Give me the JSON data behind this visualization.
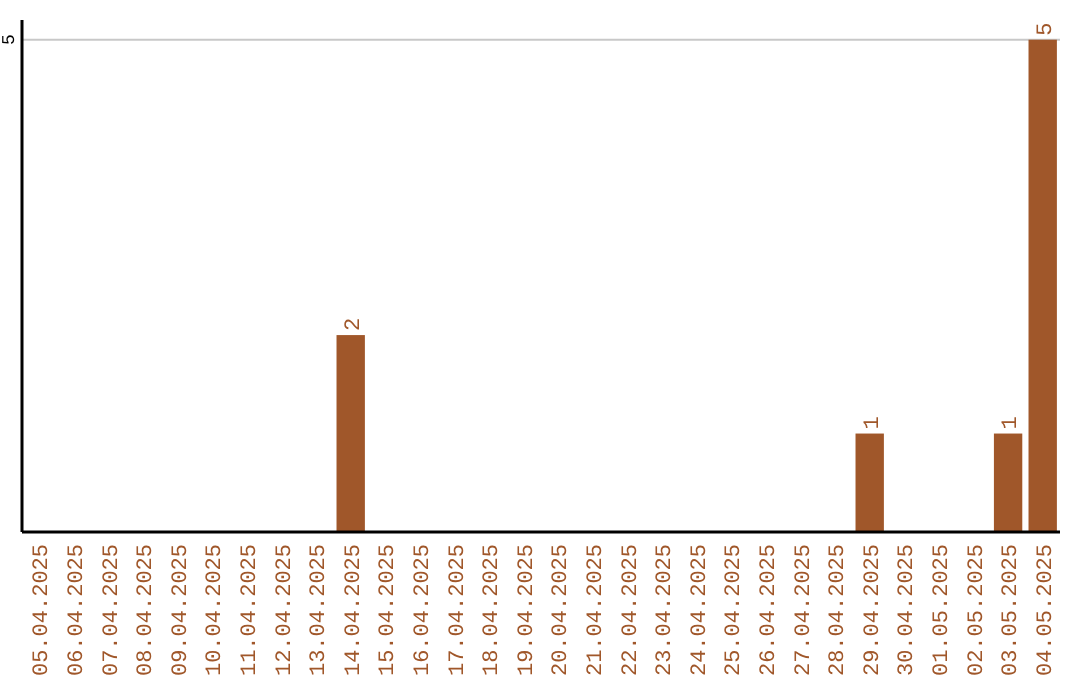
{
  "chart_data": {
    "type": "bar",
    "categories": [
      "05.04.2025",
      "06.04.2025",
      "07.04.2025",
      "08.04.2025",
      "09.04.2025",
      "10.04.2025",
      "11.04.2025",
      "12.04.2025",
      "13.04.2025",
      "14.04.2025",
      "15.04.2025",
      "16.04.2025",
      "17.04.2025",
      "18.04.2025",
      "19.04.2025",
      "20.04.2025",
      "21.04.2025",
      "22.04.2025",
      "23.04.2025",
      "24.04.2025",
      "25.04.2025",
      "26.04.2025",
      "27.04.2025",
      "28.04.2025",
      "29.04.2025",
      "30.04.2025",
      "01.05.2025",
      "02.05.2025",
      "03.05.2025",
      "04.05.2025"
    ],
    "values": [
      0,
      0,
      0,
      0,
      0,
      0,
      0,
      0,
      0,
      2,
      0,
      0,
      0,
      0,
      0,
      0,
      0,
      0,
      0,
      0,
      0,
      0,
      0,
      0,
      1,
      0,
      0,
      0,
      1,
      5
    ],
    "value_labels": [
      null,
      null,
      null,
      null,
      null,
      null,
      null,
      null,
      null,
      "2",
      null,
      null,
      null,
      null,
      null,
      null,
      null,
      null,
      null,
      null,
      null,
      null,
      null,
      null,
      "1",
      null,
      null,
      null,
      "1",
      "5"
    ],
    "color": "#a0572a",
    "ylim": [
      0,
      5.2
    ],
    "yticks": [
      5
    ],
    "grid": "y"
  }
}
